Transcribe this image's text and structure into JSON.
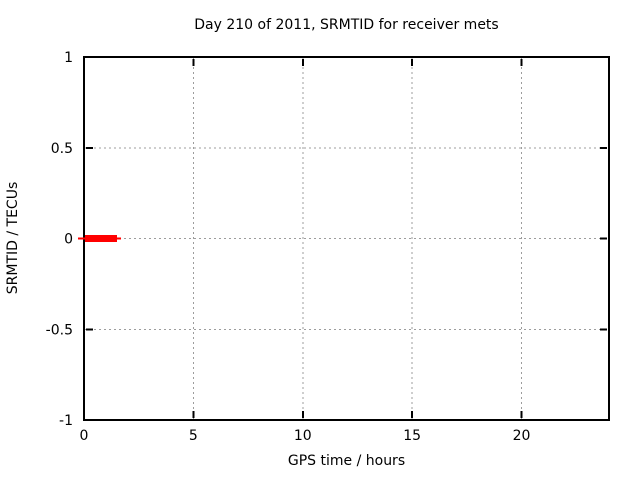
{
  "chart_data": {
    "type": "line",
    "title": "Day 210 of 2011, SRMTID for receiver mets",
    "xlabel": "GPS time / hours",
    "ylabel": "SRMTID / TECUs",
    "xlim": [
      0,
      24
    ],
    "ylim": [
      -1,
      1
    ],
    "xticks": [
      0,
      5,
      10,
      15,
      20
    ],
    "xtick_labels": [
      "0",
      "5",
      "10",
      "15",
      "20"
    ],
    "yticks": [
      -1,
      -0.5,
      0,
      0.5,
      1
    ],
    "ytick_labels": [
      "-1",
      "-0.5",
      "0",
      "0.5",
      "1"
    ],
    "grid": true,
    "grid_color": "#9c9c9c",
    "border_color": "#000000",
    "background": "#ffffff",
    "legend": "none",
    "series": [
      {
        "name": "SRMTID",
        "color": "#ff0000",
        "y_value": 0,
        "data_x_range": [
          0,
          1.5
        ],
        "render_segments": [
          {
            "x_start": -0.27,
            "x_end": 1.69,
            "thickness_px": 2
          },
          {
            "x_start": 0.05,
            "x_end": 1.51,
            "thickness_px": 7
          }
        ]
      }
    ]
  }
}
